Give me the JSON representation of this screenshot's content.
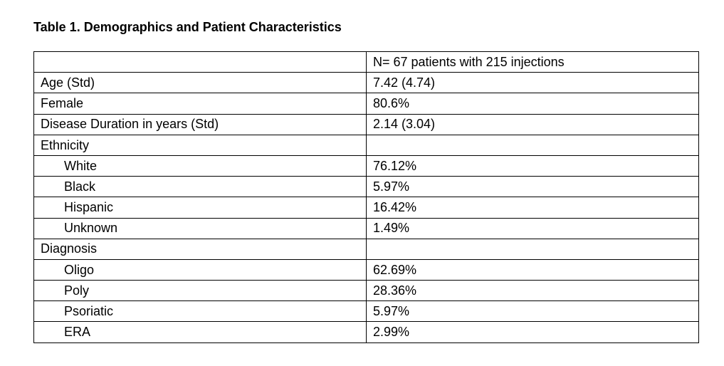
{
  "page": {
    "title": "Table 1. Demographics and Patient Characteristics"
  },
  "table": {
    "rows": [
      {
        "label": "",
        "value": "N= 67 patients with 215 injections",
        "indent": false
      },
      {
        "label": "Age (Std)",
        "value": "7.42 (4.74)",
        "indent": false
      },
      {
        "label": "Female",
        "value": "80.6%",
        "indent": false
      },
      {
        "label": "Disease Duration in years (Std)",
        "value": "2.14 (3.04)",
        "indent": false
      },
      {
        "label": "Ethnicity",
        "value": "",
        "indent": false
      },
      {
        "label": "White",
        "value": "76.12%",
        "indent": true
      },
      {
        "label": "Black",
        "value": "5.97%",
        "indent": true
      },
      {
        "label": "Hispanic",
        "value": "16.42%",
        "indent": true
      },
      {
        "label": "Unknown",
        "value": "1.49%",
        "indent": true
      },
      {
        "label": "Diagnosis",
        "value": "",
        "indent": false
      },
      {
        "label": "Oligo",
        "value": "62.69%",
        "indent": true
      },
      {
        "label": "Poly",
        "value": "28.36%",
        "indent": true
      },
      {
        "label": "Psoriatic",
        "value": "5.97%",
        "indent": true
      },
      {
        "label": "ERA",
        "value": "2.99%",
        "indent": true
      }
    ]
  }
}
